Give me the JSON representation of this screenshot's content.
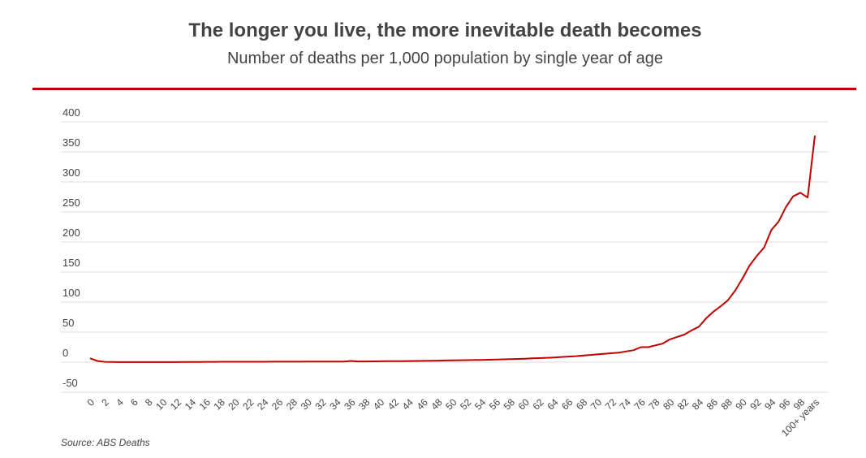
{
  "chart_data": {
    "type": "line",
    "title": "The longer you live, the more inevitable death becomes",
    "subtitle": "Number of deaths per 1,000 population by single year of age",
    "xlabel": "",
    "ylabel": "",
    "source": "Source: ABS Deaths",
    "ylim": [
      -50,
      400
    ],
    "yticks": [
      -50,
      0,
      50,
      100,
      150,
      200,
      250,
      300,
      350,
      400
    ],
    "grid": true,
    "line_color": "#c00000",
    "x_tick_labels_every": 2,
    "last_category_label": "100+ years",
    "series": [
      {
        "name": "Deaths per 1,000",
        "values": [
          6.5,
          2,
          0.5,
          0.3,
          0.2,
          0.2,
          0.2,
          0.2,
          0.2,
          0.2,
          0.2,
          0.2,
          0.2,
          0.3,
          0.3,
          0.4,
          0.5,
          0.6,
          0.7,
          0.7,
          0.7,
          0.7,
          0.7,
          0.7,
          0.7,
          0.8,
          0.8,
          0.8,
          0.8,
          0.8,
          0.9,
          0.9,
          1,
          1,
          1.1,
          1.1,
          2,
          1.2,
          1.2,
          1.4,
          1.5,
          1.6,
          1.7,
          1.8,
          1.9,
          2,
          2.1,
          2.3,
          2.5,
          2.8,
          3,
          3.2,
          3.4,
          3.6,
          3.8,
          4,
          4.4,
          4.7,
          5,
          5.4,
          5.8,
          6.3,
          6.8,
          7.3,
          7.9,
          8.6,
          9.3,
          10,
          11,
          12,
          13,
          14,
          15,
          16,
          18,
          20,
          25,
          25,
          28,
          31,
          38,
          42,
          46,
          53,
          59,
          73,
          84,
          93,
          103,
          119,
          139,
          161,
          177,
          191,
          220,
          234,
          258,
          276,
          282,
          274,
          377
        ]
      }
    ]
  }
}
